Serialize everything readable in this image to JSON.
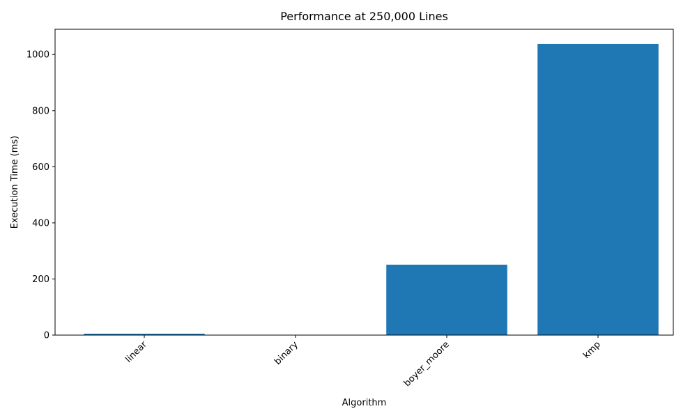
{
  "chart_data": {
    "type": "bar",
    "title": "Performance at 250,000 Lines",
    "xlabel": "Algorithm",
    "ylabel": "Execution Time (ms)",
    "categories": [
      "linear",
      "binary",
      "boyer_moore",
      "kmp"
    ],
    "values": [
      5,
      0.2,
      251,
      1038
    ],
    "ylim": [
      0,
      1090
    ],
    "yticks": [
      0,
      200,
      400,
      600,
      800,
      1000
    ],
    "xtick_rotation_deg": 45,
    "bar_color": "#1f77b4",
    "grid": false,
    "legend": "none"
  }
}
